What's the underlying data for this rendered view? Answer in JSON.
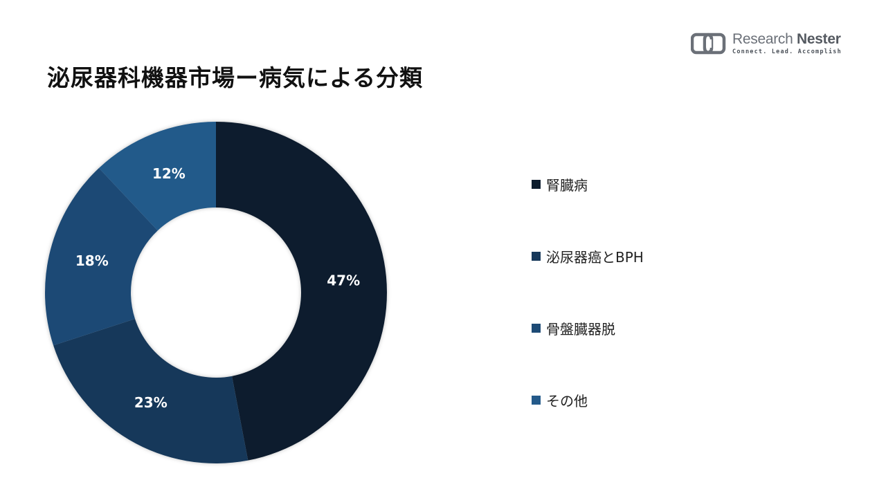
{
  "title": "泌尿器科機器市場ー病気による分類",
  "logo": {
    "name_part1": "Research",
    "name_part2": "Nester",
    "tagline": "Connect. Lead. Accomplish"
  },
  "chart_data": {
    "type": "pie",
    "donut": true,
    "title": "泌尿器科機器市場ー病気による分類",
    "legend_position": "right",
    "categories": [
      "腎臓病",
      "泌尿器癌とBPH",
      "骨盤臓器脱",
      "その他"
    ],
    "values": [
      47,
      23,
      18,
      12
    ],
    "labels": [
      "47%",
      "23%",
      "18%",
      "12%"
    ],
    "colors": [
      "#0d1d2e",
      "#17385a",
      "#1d4a75",
      "#245a8a"
    ]
  }
}
